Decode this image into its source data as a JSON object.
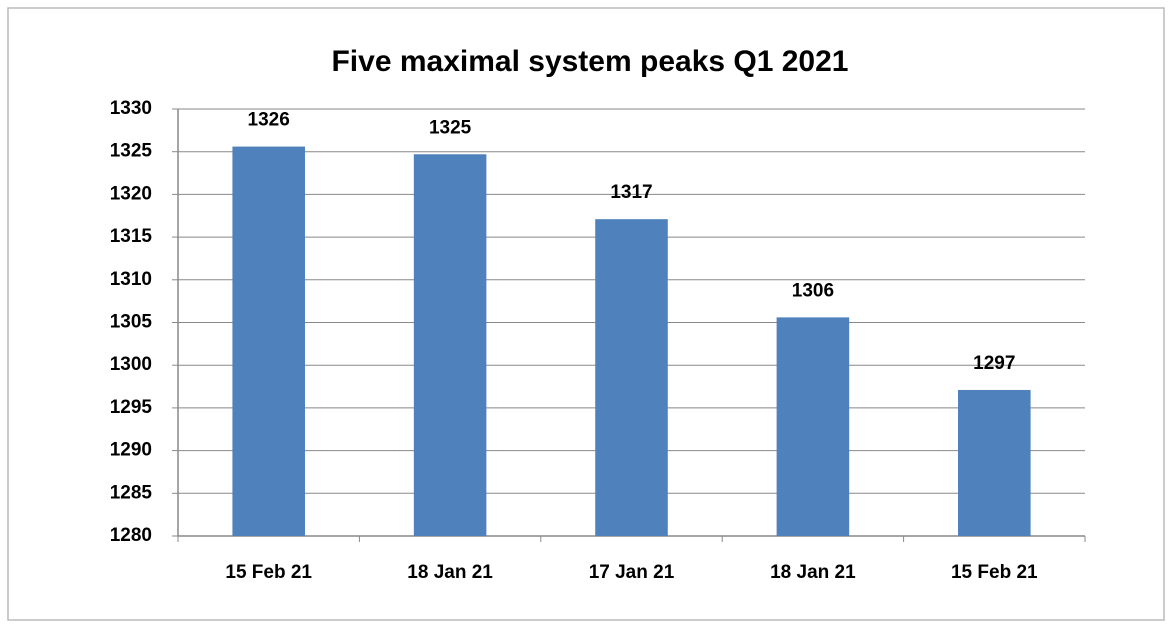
{
  "chart_data": {
    "type": "bar",
    "title": "Five maximal system peaks Q1 2021",
    "categories": [
      "15 Feb 21",
      "18 Jan 21",
      "17 Jan 21",
      "18 Jan 21",
      "15 Feb 21"
    ],
    "values": [
      1325.6,
      1324.7,
      1317.1,
      1305.6,
      1297.1
    ],
    "value_labels": [
      "1326",
      "1325",
      "1317",
      "1306",
      "1297"
    ],
    "color": "#4f81bd",
    "ylim": [
      1280,
      1330
    ],
    "yticks": [
      1280,
      1285,
      1290,
      1295,
      1300,
      1305,
      1310,
      1315,
      1320,
      1325,
      1330
    ],
    "grid": true
  }
}
